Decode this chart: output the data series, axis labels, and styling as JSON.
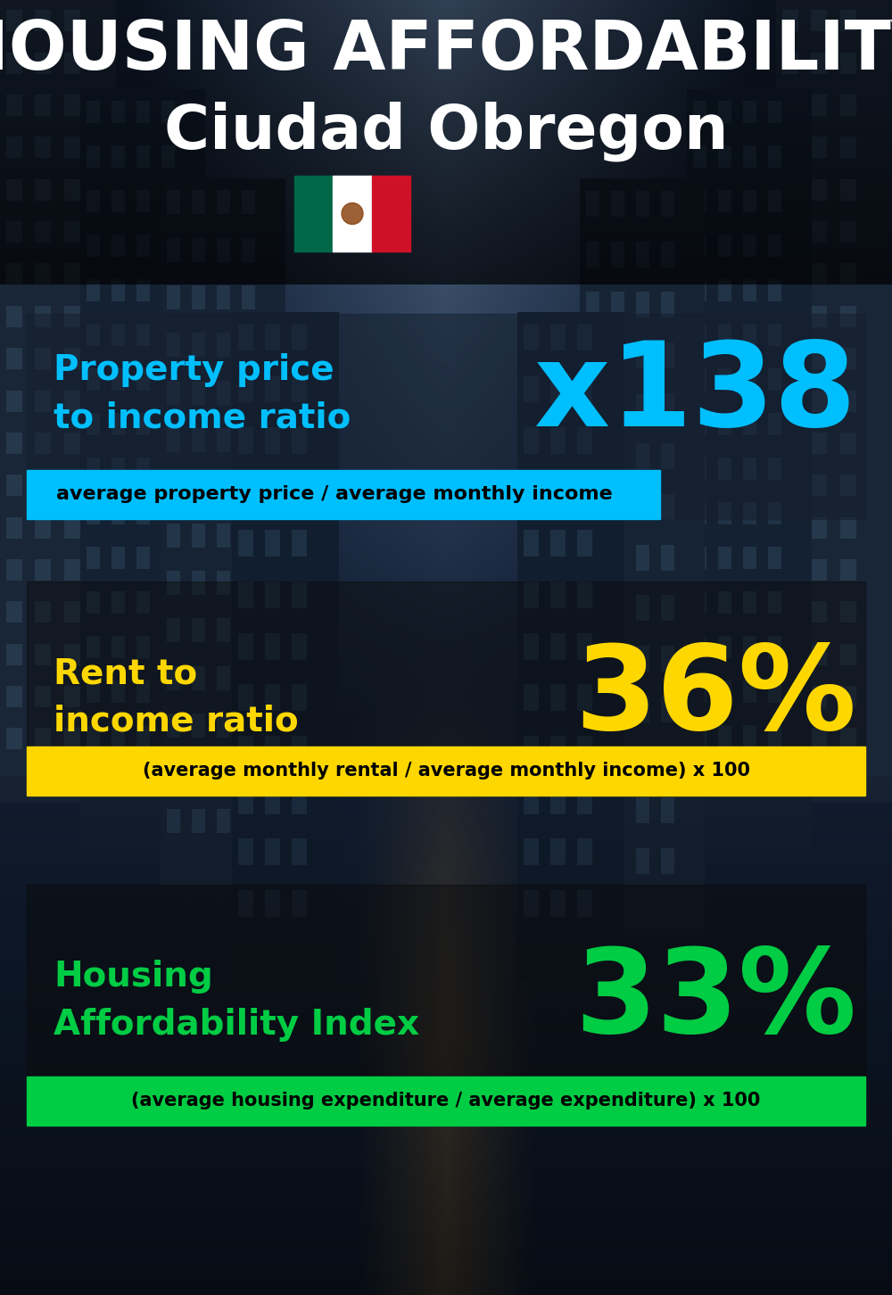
{
  "title_line1": "HOUSING AFFORDABILITY",
  "title_line2": "Ciudad Obregon",
  "bg_color": "#0d1b2a",
  "title1_color": "#ffffff",
  "title2_color": "#ffffff",
  "section1_label": "Property price\nto income ratio",
  "section1_value": "x138",
  "section1_label_color": "#00bfff",
  "section1_value_color": "#00bfff",
  "section1_banner_text": "average property price / average monthly income",
  "section1_banner_bg": "#00bfff",
  "section1_banner_text_color": "#000000",
  "section2_label": "Rent to\nincome ratio",
  "section2_value": "36%",
  "section2_label_color": "#ffd700",
  "section2_value_color": "#ffd700",
  "section2_banner_text": "(average monthly rental / average monthly income) x 100",
  "section2_banner_bg": "#ffd700",
  "section2_banner_text_color": "#000000",
  "section3_label": "Housing\nAffordability Index",
  "section3_value": "33%",
  "section3_label_color": "#00cc44",
  "section3_value_color": "#00cc44",
  "section3_banner_text": "(average housing expenditure / average expenditure) x 100",
  "section3_banner_bg": "#00cc44",
  "section3_banner_text_color": "#000000",
  "flag_green": "#006847",
  "flag_white": "#ffffff",
  "flag_red": "#ce1126"
}
